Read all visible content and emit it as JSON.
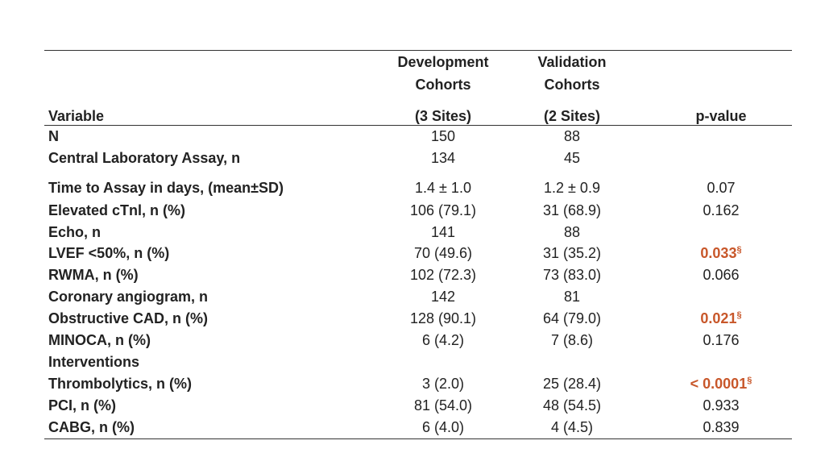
{
  "table": {
    "header": {
      "variable": "Variable",
      "development": [
        "Development",
        "Cohorts",
        "(3 Sites)"
      ],
      "validation": [
        "Validation",
        "Cohorts",
        "(2 Sites)"
      ],
      "pvalue": "p-value"
    },
    "rows": [
      {
        "variable": "N",
        "development": "150",
        "validation": "88",
        "pvalue": ""
      },
      {
        "variable": "Central Laboratory Assay, n",
        "development": "134",
        "validation": "45",
        "pvalue": ""
      },
      {
        "variable": "Time to Assay in days, (mean±SD)",
        "development": "1.4 ± 1.0",
        "validation": "1.2 ± 0.9",
        "pvalue": "0.07"
      },
      {
        "variable": "Elevated cTnl, n (%)",
        "development": "106 (79.1)",
        "validation": "31 (68.9)",
        "pvalue": "0.162"
      },
      {
        "variable": "Echo, n",
        "development": "141",
        "validation": "88",
        "pvalue": ""
      },
      {
        "variable": "LVEF <50%, n (%)",
        "development": "70 (49.6)",
        "validation": "31 (35.2)",
        "pvalue": "0.033",
        "pvalue_mark": "§"
      },
      {
        "variable": "RWMA, n (%)",
        "development": "102 (72.3)",
        "validation": "73 (83.0)",
        "pvalue": "0.066"
      },
      {
        "variable": "Coronary angiogram, n",
        "development": "142",
        "validation": "81",
        "pvalue": ""
      },
      {
        "variable": "Obstructive CAD, n (%)",
        "development": "128 (90.1)",
        "validation": "64 (79.0)",
        "pvalue": "0.021",
        "pvalue_mark": "§"
      },
      {
        "variable": "MINOCA, n (%)",
        "development": "6 (4.2)",
        "validation": "7 (8.6)",
        "pvalue": "0.176"
      },
      {
        "variable": "Interventions",
        "development": "",
        "validation": "",
        "pvalue": ""
      },
      {
        "variable": "Thrombolytics, n (%)",
        "development": "3 (2.0)",
        "validation": "25 (28.4)",
        "pvalue": "< 0.0001",
        "pvalue_mark": "§"
      },
      {
        "variable": "PCI, n (%)",
        "development": "81 (54.0)",
        "validation": "48 (54.5)",
        "pvalue": "0.933"
      },
      {
        "variable": "CABG, n (%)",
        "development": "6 (4.0)",
        "validation": "4 (4.5)",
        "pvalue": "0.839"
      }
    ]
  },
  "colors": {
    "significant": "#c8572a",
    "text": "#222222",
    "rule": "#333333"
  }
}
